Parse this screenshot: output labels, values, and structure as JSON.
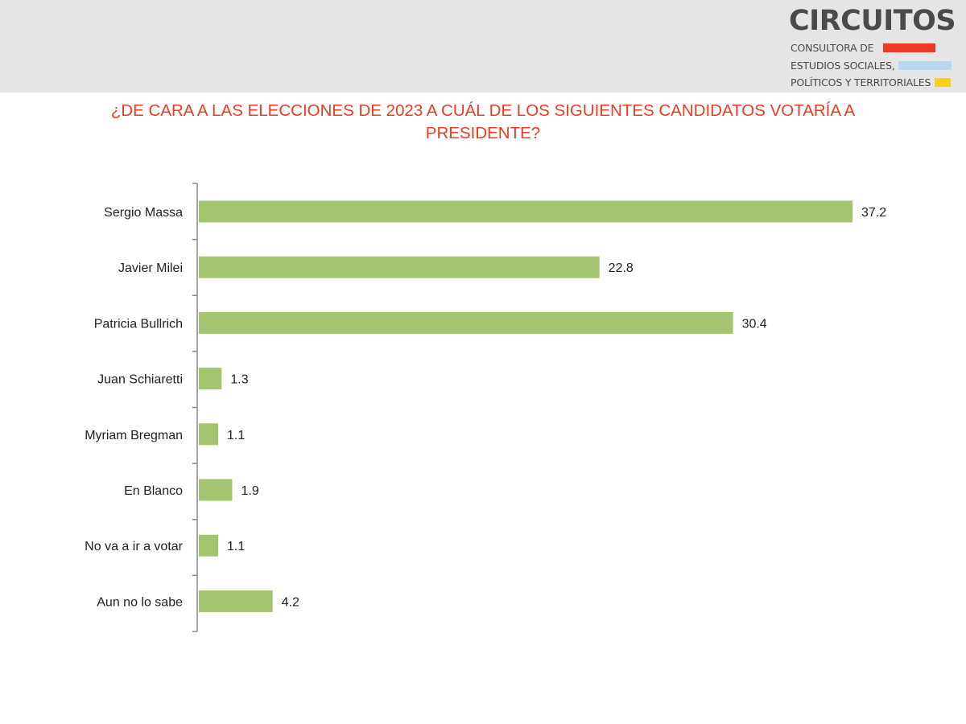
{
  "logo": {
    "name": "CIRCUITOS",
    "line1": "CONSULTORA DE",
    "line2": "ESTUDIOS SOCIALES,",
    "line3": "POLÍTICOS Y TERRITORIALES",
    "colors": {
      "red": "#ee3a22",
      "blue": "#b9d7f1",
      "yellow": "#f7d117"
    }
  },
  "colors": {
    "title": "#ee3a22",
    "bar": "#a5c46f",
    "axis": "#888888"
  },
  "chart_data": {
    "type": "bar",
    "orientation": "horizontal",
    "title": "¿DE CARA A LAS ELECCIONES DE 2023 A CUÁL DE LOS SIGUIENTES CANDIDATOS VOTARÍA A PRESIDENTE?",
    "categories": [
      "Sergio Massa",
      "Javier Milei",
      "Patricia Bullrich",
      "Juan Schiaretti",
      "Myriam Bregman",
      "En Blanco",
      "No va a ir a votar",
      "Aun no lo sabe"
    ],
    "values": [
      37.2,
      22.8,
      30.4,
      1.3,
      1.1,
      1.9,
      1.1,
      4.2
    ],
    "data_labels": [
      "37.2",
      "22.8",
      "30.4",
      "1.3",
      "1.1",
      "1.9",
      "1.1",
      "4.2"
    ],
    "xlim": [
      0,
      37.2
    ],
    "grid": false,
    "legend": "none"
  }
}
